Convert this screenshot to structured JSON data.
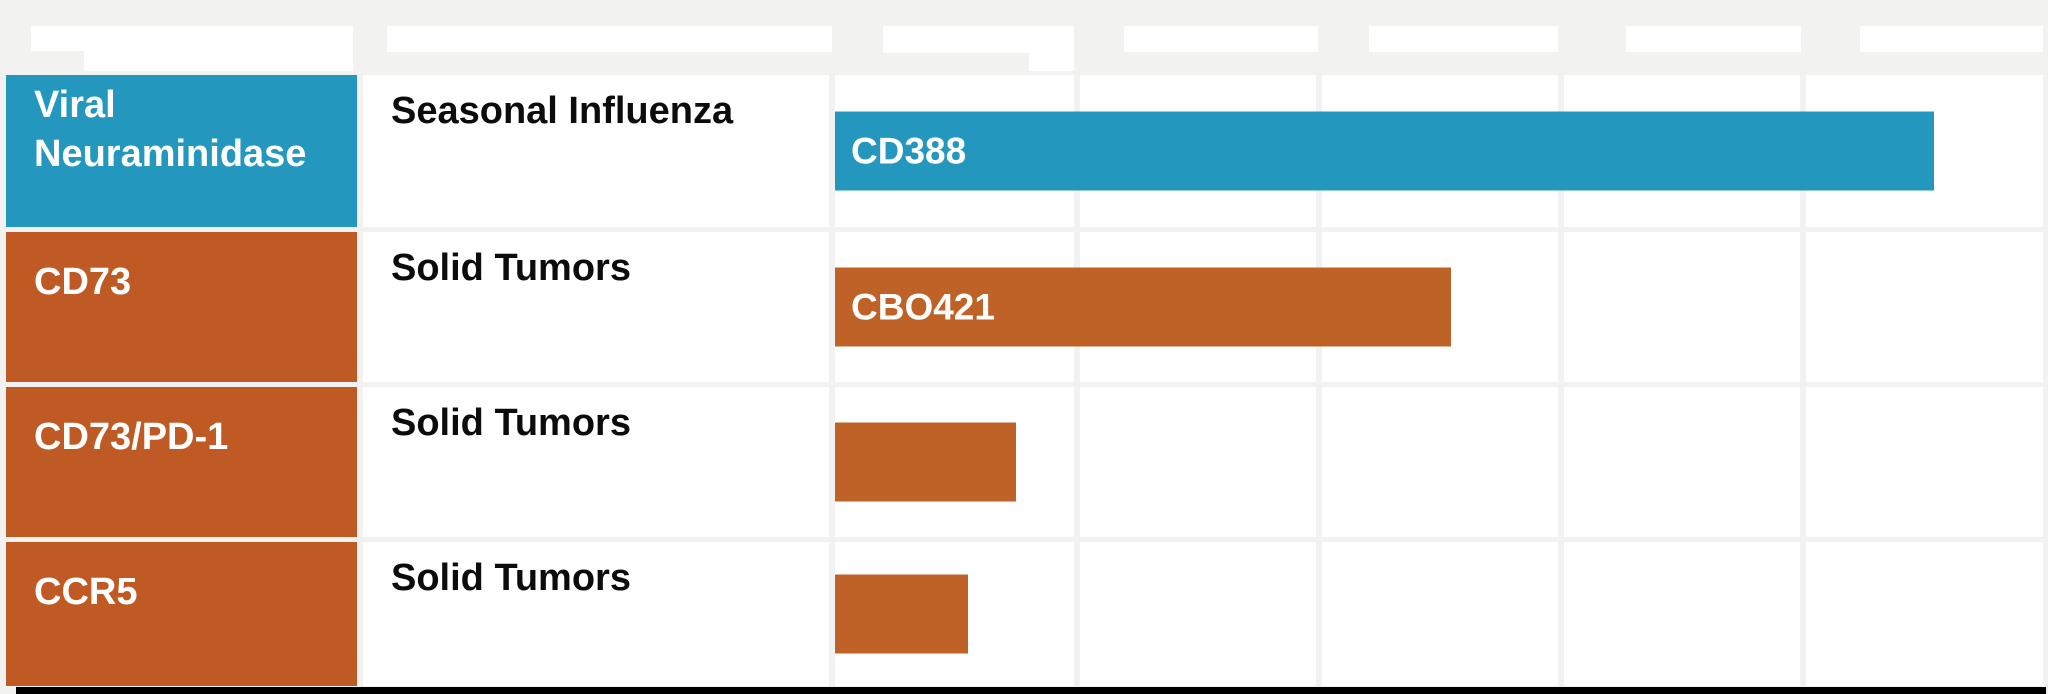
{
  "page": {
    "background_color": "#f2f2f1",
    "header_placeholders_blank": true,
    "bottom_divider_color": "#000000"
  },
  "colors": {
    "blue": "#2397be",
    "orange_cell": "#bf5a24",
    "orange_bar": "#bf6228",
    "gridline": "#f2f2f1",
    "cell_white": "#ffffff",
    "target_text": "#ffffff",
    "indication_text": "#0c0c0c"
  },
  "chart_data": {
    "type": "bar",
    "title": "",
    "description": "Drug development pipeline chart: target / indication table with horizontal phase-progress bars across 5 unlabeled phase columns (header labels are blank white boxes).",
    "phase_axis": {
      "columns": 5,
      "tick_labels": [
        "",
        "",
        "",
        "",
        ""
      ],
      "range": [
        0,
        1
      ],
      "grid": true
    },
    "rows": [
      {
        "target": "Viral Neuraminidase",
        "indication": "Seasonal Influenza",
        "program": "CD388",
        "cell_color": "#2397be",
        "bar_color": "#2397be",
        "bar_fraction": 0.91
      },
      {
        "target": "CD73",
        "indication": "Solid Tumors",
        "program": "CBO421",
        "cell_color": "#bf5a24",
        "bar_color": "#bf6228",
        "bar_fraction": 0.51
      },
      {
        "target": "CD73/PD-1",
        "indication": "Solid Tumors",
        "program": "",
        "cell_color": "#bf5a24",
        "bar_color": "#bf6228",
        "bar_fraction": 0.15
      },
      {
        "target": "CCR5",
        "indication": "Solid Tumors",
        "program": "",
        "cell_color": "#bf5a24",
        "bar_color": "#bf6228",
        "bar_fraction": 0.11
      }
    ]
  }
}
